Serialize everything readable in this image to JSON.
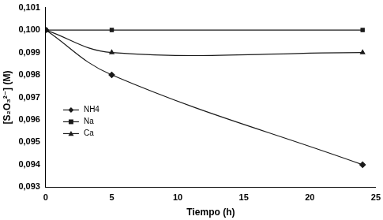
{
  "chart_data": {
    "type": "line",
    "x_label": "Tiempo (h)",
    "y_label": "[S₂O₃²⁻] (M)",
    "x": [
      0,
      5,
      24
    ],
    "series": [
      {
        "name": "NH4",
        "color": "#1a1a1a",
        "marker": "diamond",
        "values": [
          0.1,
          0.098,
          0.094
        ]
      },
      {
        "name": "Na",
        "color": "#1a1a1a",
        "marker": "square",
        "values": [
          0.1,
          0.1,
          0.1
        ]
      },
      {
        "name": "Ca",
        "color": "#1a1a1a",
        "marker": "triangle",
        "values": [
          0.1,
          0.099,
          0.099
        ]
      }
    ],
    "xlim": [
      0,
      25
    ],
    "xticks": [
      0,
      5,
      10,
      15,
      20,
      25
    ],
    "ylim": [
      0.093,
      0.101
    ],
    "yticks": [
      {
        "value": 0.093,
        "label": "0,093"
      },
      {
        "value": 0.094,
        "label": "0,094"
      },
      {
        "value": 0.095,
        "label": "0,095"
      },
      {
        "value": 0.096,
        "label": "0,096"
      },
      {
        "value": 0.097,
        "label": "0,097"
      },
      {
        "value": 0.098,
        "label": "0,098"
      },
      {
        "value": 0.099,
        "label": "0,099"
      },
      {
        "value": 0.1,
        "label": "0,100"
      },
      {
        "value": 0.101,
        "label": "0,101"
      }
    ],
    "grid": false,
    "legend": "left"
  }
}
